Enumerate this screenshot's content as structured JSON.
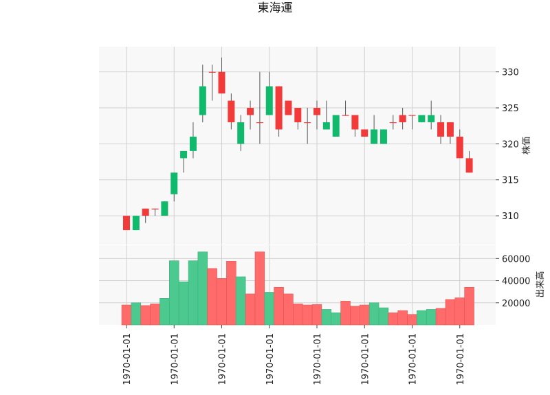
{
  "chart_data": {
    "type": "candlestick",
    "title": "東海運",
    "colors": {
      "up": "#10b96b",
      "down": "#f23a3a",
      "volume_up": "#4cc98f",
      "volume_down": "#ff6b6b",
      "wick": "#555555",
      "grid": "#d0d0d0",
      "panel_bg": "#f8f8f8"
    },
    "price_panel": {
      "ylabel": "株価",
      "ylim": [
        306,
        333.5
      ],
      "yticks": [
        310,
        315,
        320,
        325,
        330
      ],
      "grid": true
    },
    "volume_panel": {
      "ylabel": "出来高",
      "ylim": [
        0,
        72000
      ],
      "yticks": [
        20000,
        40000,
        60000
      ],
      "grid": true
    },
    "x_tick_labels": [
      "1970-01-01",
      "1970-01-01",
      "1970-01-01",
      "1970-01-01",
      "1970-01-01",
      "1970-01-01",
      "1970-01-01",
      "1970-01-01"
    ],
    "candles": [
      {
        "open": 310,
        "high": 310,
        "low": 308,
        "close": 308,
        "volume": 18000
      },
      {
        "open": 308,
        "high": 310,
        "low": 308,
        "close": 310,
        "volume": 20000
      },
      {
        "open": 311,
        "high": 311,
        "low": 309,
        "close": 310,
        "volume": 17500
      },
      {
        "open": 311,
        "high": 311,
        "low": 310,
        "close": 311,
        "volume": 19000
      },
      {
        "open": 310,
        "high": 312,
        "low": 310,
        "close": 312,
        "volume": 24000
      },
      {
        "open": 313,
        "high": 316,
        "low": 312,
        "close": 316,
        "volume": 58000
      },
      {
        "open": 318,
        "high": 319,
        "low": 316,
        "close": 319,
        "volume": 39000
      },
      {
        "open": 319,
        "high": 323,
        "low": 318,
        "close": 321,
        "volume": 58000
      },
      {
        "open": 324,
        "high": 331,
        "low": 323,
        "close": 328,
        "volume": 66000
      },
      {
        "open": 330,
        "high": 331,
        "low": 326,
        "close": 330,
        "volume": 51000
      },
      {
        "open": 330,
        "high": 332,
        "low": 327,
        "close": 327,
        "volume": 42000
      },
      {
        "open": 326,
        "high": 327,
        "low": 322,
        "close": 323,
        "volume": 57500
      },
      {
        "open": 320,
        "high": 324,
        "low": 319,
        "close": 323,
        "volume": 43500
      },
      {
        "open": 325,
        "high": 326,
        "low": 322,
        "close": 324,
        "volume": 28000
      },
      {
        "open": 323,
        "high": 330,
        "low": 320,
        "close": 323,
        "volume": 66000
      },
      {
        "open": 324,
        "high": 330,
        "low": 324,
        "close": 328,
        "volume": 29500
      },
      {
        "open": 328,
        "high": 328,
        "low": 321,
        "close": 322,
        "volume": 34000
      },
      {
        "open": 326,
        "high": 326,
        "low": 324,
        "close": 324,
        "volume": 28000
      },
      {
        "open": 325,
        "high": 325,
        "low": 322,
        "close": 323,
        "volume": 19000
      },
      {
        "open": 323,
        "high": 325,
        "low": 320,
        "close": 323,
        "volume": 18000
      },
      {
        "open": 325,
        "high": 326,
        "low": 322,
        "close": 324,
        "volume": 18500
      },
      {
        "open": 322,
        "high": 326,
        "low": 322,
        "close": 323,
        "volume": 14000
      },
      {
        "open": 321,
        "high": 324,
        "low": 321,
        "close": 324,
        "volume": 11000
      },
      {
        "open": 324,
        "high": 326,
        "low": 324,
        "close": 324,
        "volume": 21500
      },
      {
        "open": 324,
        "high": 324,
        "low": 321,
        "close": 322,
        "volume": 17000
      },
      {
        "open": 322,
        "high": 322,
        "low": 321,
        "close": 321,
        "volume": 18000
      },
      {
        "open": 320,
        "high": 324,
        "low": 320,
        "close": 322,
        "volume": 20000
      },
      {
        "open": 320,
        "high": 322,
        "low": 320,
        "close": 322,
        "volume": 15500
      },
      {
        "open": 323,
        "high": 324,
        "low": 322,
        "close": 323,
        "volume": 11000
      },
      {
        "open": 324,
        "high": 325,
        "low": 322,
        "close": 323,
        "volume": 13000
      },
      {
        "open": 324,
        "high": 324,
        "low": 322,
        "close": 324,
        "volume": 9500
      },
      {
        "open": 323,
        "high": 324,
        "low": 323,
        "close": 324,
        "volume": 13000
      },
      {
        "open": 323,
        "high": 326,
        "low": 322,
        "close": 324,
        "volume": 14000
      },
      {
        "open": 323,
        "high": 324,
        "low": 320,
        "close": 321,
        "volume": 15000
      },
      {
        "open": 323,
        "high": 323,
        "low": 320,
        "close": 321,
        "volume": 23000
      },
      {
        "open": 321,
        "high": 322,
        "low": 318,
        "close": 318,
        "volume": 24500
      },
      {
        "open": 318,
        "high": 319,
        "low": 316,
        "close": 316,
        "volume": 34000
      }
    ]
  }
}
